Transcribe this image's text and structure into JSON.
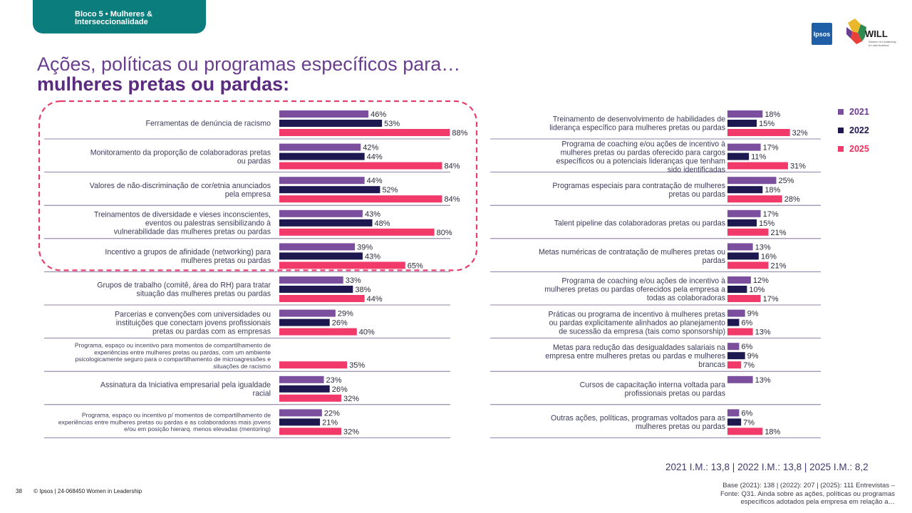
{
  "header": {
    "tab_line1": "Bloco 5 • Mulheres &",
    "tab_line2": "Interseccionalidade",
    "title_line1": "Ações, políticas ou programas específicos para…",
    "title_line2": "mulheres pretas ou pardas:"
  },
  "logos": {
    "ipsos": "Ipsos",
    "will": "WILL",
    "will_sub": "Women in Leadership in Latin America"
  },
  "colors": {
    "2021": "#7b4f9e",
    "2022": "#1e1850",
    "2025": "#f23a6a",
    "highlight": "#e83e6c",
    "divider": "#6b5a8e"
  },
  "legend": [
    {
      "label": "2021",
      "color": "#7b4f9e"
    },
    {
      "label": "2022",
      "color": "#1e1850"
    },
    {
      "label": "2025",
      "color": "#f23a6a"
    }
  ],
  "chart_data": {
    "type": "bar",
    "orientation": "horizontal",
    "unit": "%",
    "series_names": [
      "2021",
      "2022",
      "2025"
    ],
    "panels": [
      {
        "name": "left",
        "categories": [
          "Ferramentas de denúncia de racismo",
          "Monitoramento da proporção de colaboradoras pretas ou pardas",
          "Valores de não-discriminação de cor/etnia anunciados pela empresa",
          "Treinamentos de diversidade e vieses inconscientes, eventos ou palestras sensibilizando à vulnerabilidade das mulheres pretas ou pardas",
          "Incentivo a grupos de afinidade (networking) para mulheres pretas ou pardas",
          "Grupos de trabalho (comitê, área do RH) para tratar situação das mulheres pretas ou pardas",
          "Parcerias e convenções com universidades ou instituições que conectam jovens profissionais pretas ou pardas com as empresas",
          "Programa, espaço ou incentivo para momentos de compartilhamento de experiências entre mulheres pretas ou pardas, com um ambiente psicologicamente seguro para o compartilhamento de microagressões e situações de racismo",
          "Assinatura da Iniciativa empresarial pela igualdade racial",
          "Programa, espaço ou incentivo p/ momentos de compartilhamento de experiências entre mulheres pretas ou pardas e as colaboradoras mais jovens e/ou em posição hierarq. menos elevadas (mentoring)"
        ],
        "series": [
          {
            "name": "2021",
            "values": [
              46,
              42,
              44,
              43,
              39,
              33,
              29,
              null,
              23,
              22
            ]
          },
          {
            "name": "2022",
            "values": [
              53,
              44,
              52,
              48,
              43,
              38,
              26,
              null,
              26,
              21
            ]
          },
          {
            "name": "2025",
            "values": [
              88,
              84,
              84,
              80,
              65,
              44,
              40,
              35,
              32,
              32
            ]
          }
        ],
        "highlighted_rows": [
          0,
          1,
          2,
          3,
          4
        ]
      },
      {
        "name": "right",
        "categories": [
          "Treinamento de desenvolvimento de habilidades de liderança específico para mulheres pretas ou pardas",
          "Programa de coaching e/ou ações de incentivo à mulheres pretas ou pardas oferecido para cargos específicos ou a potenciais lideranças que tenham sido identificadas",
          "Programas especiais para contratação de mulheres pretas ou pardas",
          "Talent pipeline das colaboradoras pretas ou pardas",
          "Metas numéricas de contratação de mulheres pretas ou pardas",
          "Programa de coaching e/ou ações de incentivo à mulheres pretas ou pardas oferecidos pela empresa a todas as colaboradoras",
          "Práticas ou programa de incentivo à mulheres pretas ou pardas explicitamente alinhados ao planejamento de sucessão da empresa (tais como sponsorship)",
          "Metas para redução das desigualdades salariais na empresa entre mulheres pretas ou pardas e mulheres brancas",
          "Cursos de capacitação interna voltada para profissionais pretas ou pardas",
          "Outras ações, políticas, programas voltados para as mulheres pretas ou pardas"
        ],
        "series": [
          {
            "name": "2021",
            "values": [
              18,
              17,
              25,
              17,
              13,
              12,
              9,
              6,
              13,
              6
            ]
          },
          {
            "name": "2022",
            "values": [
              15,
              11,
              18,
              15,
              16,
              10,
              6,
              9,
              null,
              7
            ]
          },
          {
            "name": "2025",
            "values": [
              32,
              31,
              28,
              21,
              21,
              17,
              13,
              7,
              null,
              18
            ]
          }
        ]
      }
    ],
    "indices": "2021 I.M.: 13,8 | 2022 I.M.: 13,8  | 2025 I.M.: 8,2"
  },
  "footer": {
    "page_number": "38",
    "copyright": "© Ipsos | 24-068450 Women in Leadership",
    "base_line1": "Base (2021): 138 | (2022): 207 | (2025): 111 Entrevistas –",
    "base_line2": "Fonte: Q31. Ainda sobre as ações, políticas ou programas",
    "base_line3": "específicos adotados pela empresa em relação a…"
  }
}
